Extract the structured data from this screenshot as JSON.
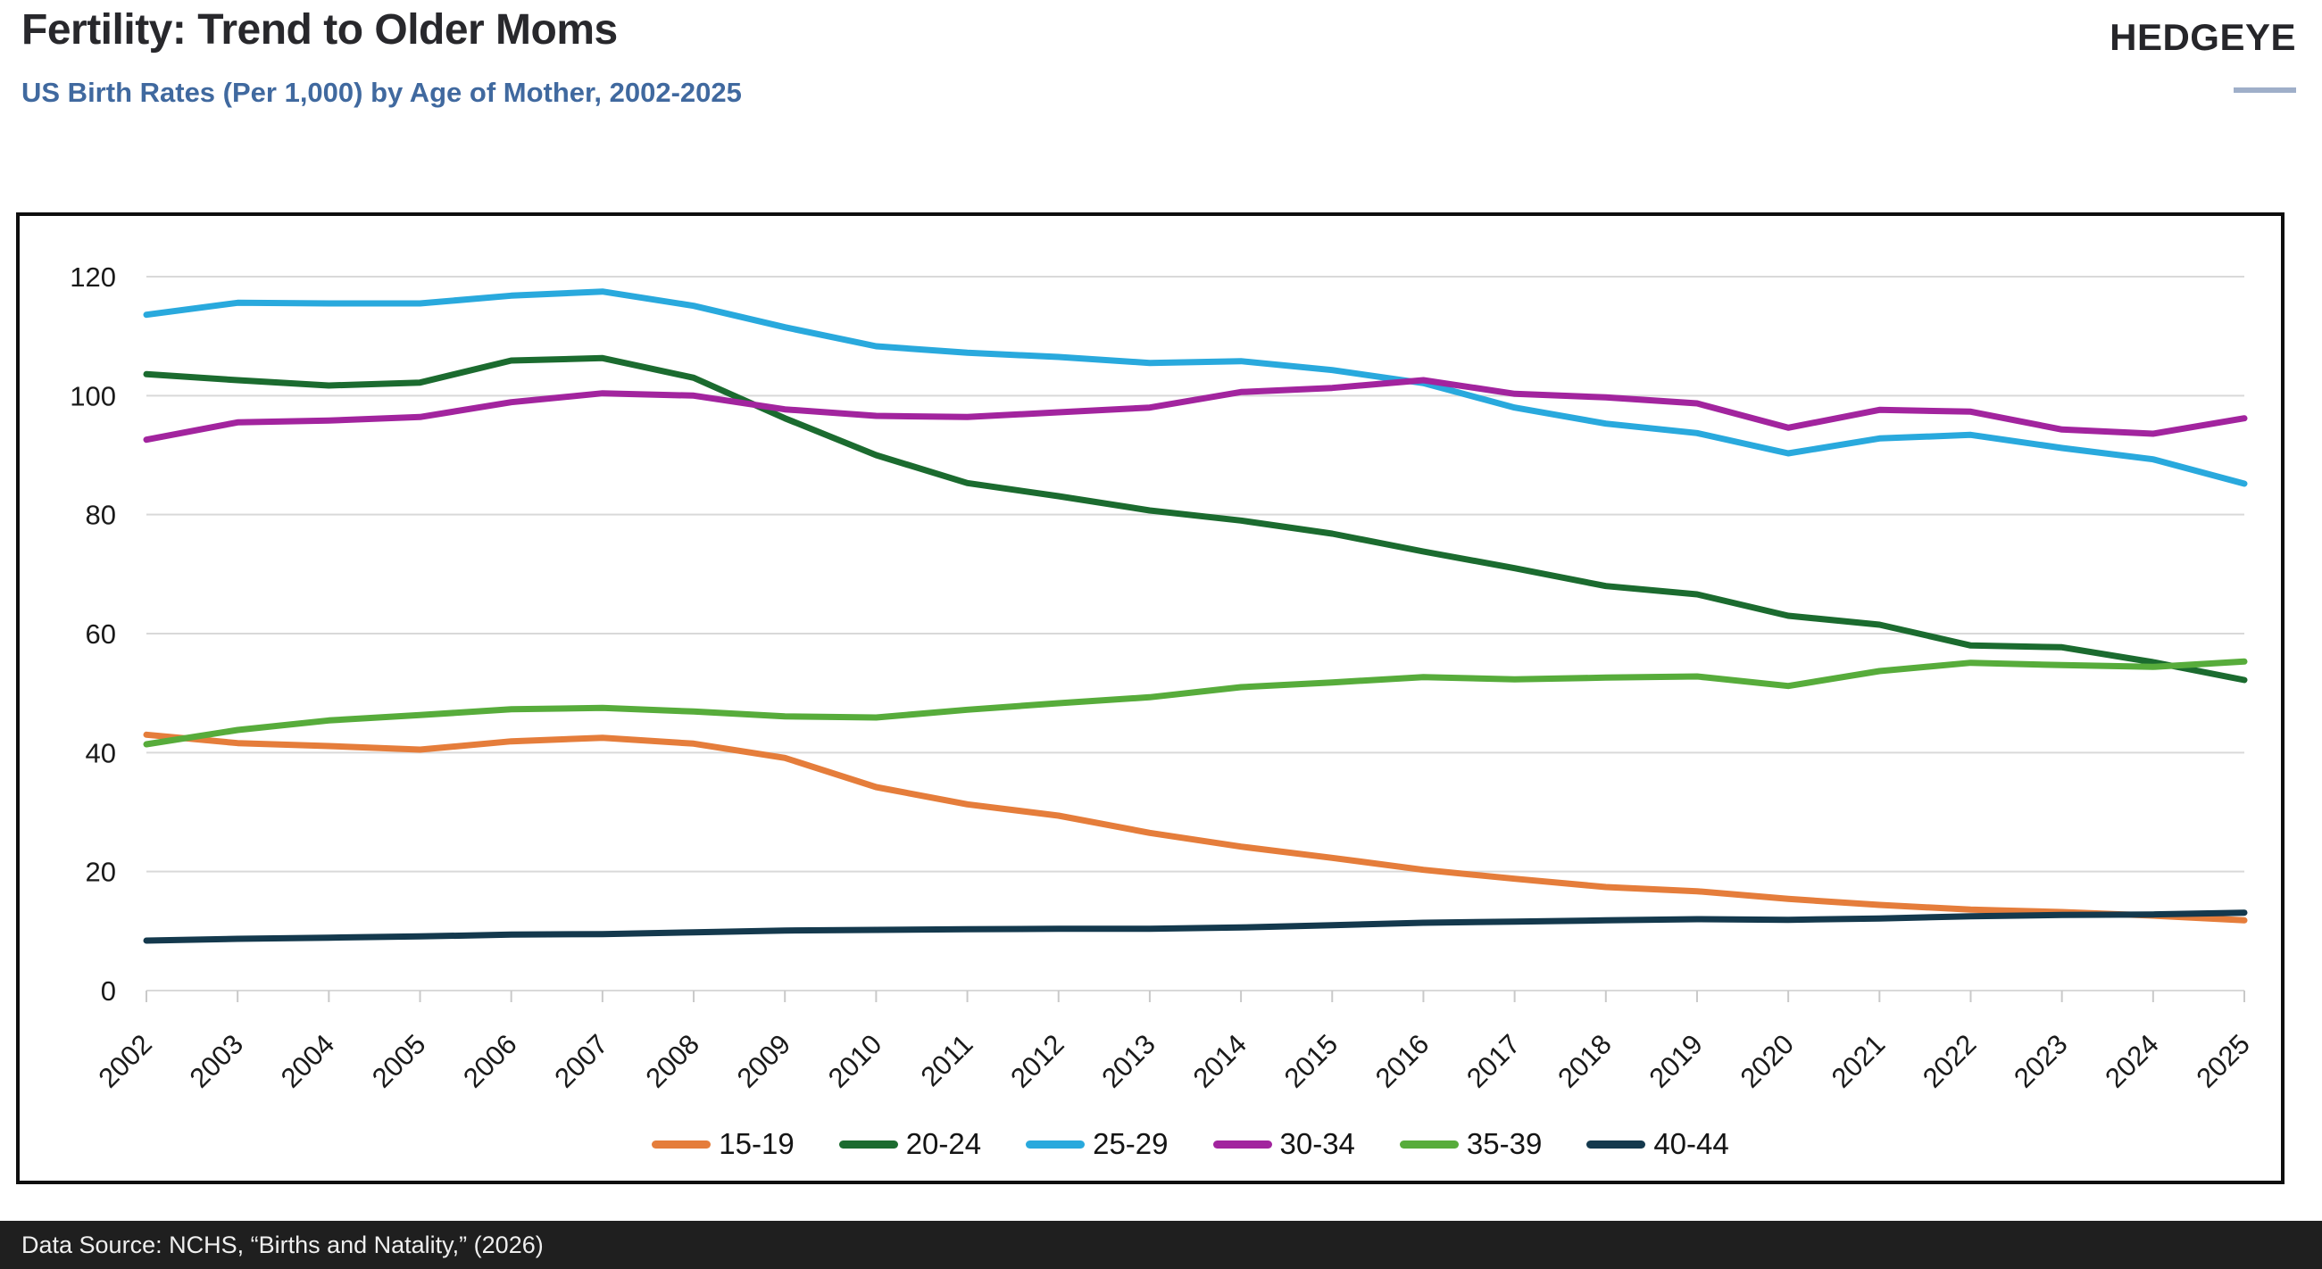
{
  "header": {
    "title": "Fertility: Trend to Older Moms",
    "subtitle": "US Birth Rates (Per 1,000) by Age of Mother, 2002-2025",
    "logo": "HEDGEYE"
  },
  "footer": {
    "source": "Data Source: NCHS, “Births and Natality,” (2026)"
  },
  "chart_data": {
    "type": "line",
    "title": "US Birth Rates (Per 1,000) by Age of Mother, 2002-2025",
    "xlabel": "",
    "ylabel": "",
    "ylim": [
      0,
      120
    ],
    "ytick_step": 20,
    "grid": "horizontal",
    "legend_position": "bottom",
    "categories": [
      "2002",
      "2003",
      "2004",
      "2005",
      "2006",
      "2007",
      "2008",
      "2009",
      "2010",
      "2011",
      "2012",
      "2013",
      "2014",
      "2015",
      "2016",
      "2017",
      "2018",
      "2019",
      "2020",
      "2021",
      "2022",
      "2023",
      "2024",
      "2025"
    ],
    "series": [
      {
        "name": "15-19",
        "color": "#e57d3b",
        "values": [
          43.0,
          41.6,
          41.1,
          40.5,
          41.9,
          42.5,
          41.5,
          39.1,
          34.2,
          31.3,
          29.4,
          26.5,
          24.2,
          22.3,
          20.3,
          18.8,
          17.4,
          16.7,
          15.4,
          14.4,
          13.6,
          13.2,
          12.6,
          11.8
        ]
      },
      {
        "name": "20-24",
        "color": "#1b6b2f",
        "values": [
          103.6,
          102.6,
          101.7,
          102.2,
          105.9,
          106.3,
          103.0,
          96.2,
          90.0,
          85.3,
          83.1,
          80.7,
          79.0,
          76.8,
          73.8,
          71.0,
          68.0,
          66.6,
          63.0,
          61.5,
          58.0,
          57.7,
          55.2,
          52.2
        ]
      },
      {
        "name": "25-29",
        "color": "#29a9dd",
        "values": [
          113.6,
          115.6,
          115.5,
          115.5,
          116.8,
          117.5,
          115.1,
          111.5,
          108.3,
          107.2,
          106.5,
          105.5,
          105.8,
          104.3,
          102.1,
          98.0,
          95.3,
          93.7,
          90.3,
          92.8,
          93.4,
          91.2,
          89.3,
          85.2
        ]
      },
      {
        "name": "30-34",
        "color": "#a2249e",
        "values": [
          92.6,
          95.5,
          95.8,
          96.4,
          98.9,
          100.4,
          100.0,
          97.7,
          96.6,
          96.4,
          97.2,
          98.0,
          100.6,
          101.3,
          102.6,
          100.3,
          99.7,
          98.7,
          94.6,
          97.6,
          97.3,
          94.3,
          93.6,
          96.2
        ]
      },
      {
        "name": "35-39",
        "color": "#57ac3b",
        "values": [
          41.4,
          43.8,
          45.4,
          46.3,
          47.3,
          47.5,
          46.9,
          46.1,
          45.9,
          47.2,
          48.3,
          49.3,
          51.0,
          51.8,
          52.7,
          52.3,
          52.6,
          52.8,
          51.2,
          53.7,
          55.1,
          54.7,
          54.4,
          55.3
        ]
      },
      {
        "name": "40-44",
        "color": "#14394d",
        "values": [
          8.4,
          8.7,
          8.9,
          9.1,
          9.4,
          9.5,
          9.8,
          10.1,
          10.2,
          10.3,
          10.4,
          10.4,
          10.6,
          11.0,
          11.4,
          11.6,
          11.8,
          12.0,
          11.9,
          12.1,
          12.5,
          12.7,
          12.8,
          13.1
        ]
      }
    ]
  }
}
